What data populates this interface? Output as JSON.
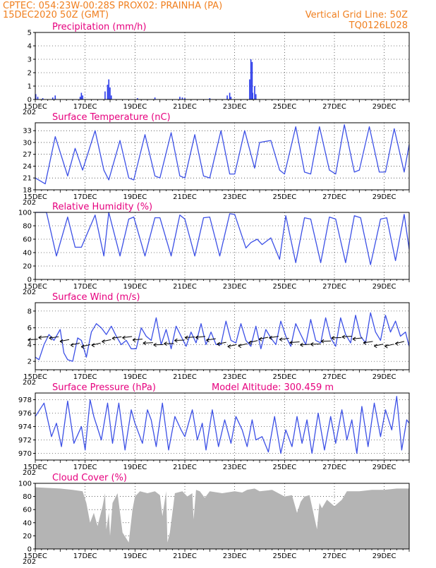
{
  "header": {
    "line1_left": "CPTEC:   054:23W-00:28S   PROX02: PRAINHA (PA)",
    "line2_left": "15DEC2020 50Z (GMT)",
    "line2_right": "Vertical Grid Line: 50Z",
    "line3_right": "TQ0126L028"
  },
  "x_ticks": [
    "15DEC",
    "17DEC",
    "19DEC",
    "21DEC",
    "23DEC",
    "25DEC",
    "27DEC",
    "29DEC"
  ],
  "x_sublabel": "202",
  "colors": {
    "line": "#3c50e6",
    "bar": "#2b3bea",
    "cloud": "#b4b4b4",
    "title": "#e6007e",
    "header": "#f07f1e"
  },
  "chart_data": [
    {
      "type": "bar",
      "title": "Precipitation (mm/h)",
      "ylim": [
        0,
        5
      ],
      "yticks": [
        0,
        1,
        2,
        3,
        4,
        5
      ],
      "x_start_day": 15,
      "x_end_day": 30,
      "values": [
        [
          15.02,
          0.4
        ],
        [
          15.1,
          0.2
        ],
        [
          15.3,
          0.1
        ],
        [
          15.7,
          0.15
        ],
        [
          15.8,
          0.3
        ],
        [
          16.8,
          0.2
        ],
        [
          16.85,
          0.5
        ],
        [
          16.9,
          0.3
        ],
        [
          17.8,
          0.6
        ],
        [
          17.9,
          1.1
        ],
        [
          17.95,
          1.5
        ],
        [
          18.0,
          0.9
        ],
        [
          18.05,
          0.3
        ],
        [
          19.1,
          0.1
        ],
        [
          19.8,
          0.15
        ],
        [
          20.8,
          0.2
        ],
        [
          20.9,
          0.15
        ],
        [
          21.0,
          0.1
        ],
        [
          22.0,
          0.1
        ],
        [
          22.7,
          0.3
        ],
        [
          22.8,
          0.5
        ],
        [
          22.85,
          0.2
        ],
        [
          23.6,
          1.5
        ],
        [
          23.65,
          3.0
        ],
        [
          23.7,
          2.8
        ],
        [
          23.72,
          0.5
        ],
        [
          23.8,
          1.0
        ],
        [
          23.85,
          0.4
        ]
      ]
    },
    {
      "type": "line",
      "title": "Surface Temperature (nC)",
      "ylim": [
        18,
        35
      ],
      "yticks": [
        18,
        21,
        24,
        27,
        30,
        33
      ],
      "x": [
        15.0,
        15.4,
        15.8,
        16.3,
        16.6,
        16.9,
        17.4,
        17.75,
        17.95,
        18.4,
        18.75,
        18.95,
        19.4,
        19.8,
        20.0,
        20.45,
        20.8,
        21.0,
        21.4,
        21.75,
        22.0,
        22.45,
        22.8,
        23.0,
        23.4,
        23.8,
        24.0,
        24.45,
        24.8,
        25.0,
        25.45,
        25.8,
        26.05,
        26.4,
        26.8,
        27.05,
        27.4,
        27.8,
        28.0,
        28.4,
        28.8,
        29.05,
        29.4,
        29.8,
        30.0
      ],
      "values": [
        21,
        19.5,
        31.5,
        21.5,
        28.5,
        23,
        33,
        23,
        20.5,
        30.5,
        21,
        20.5,
        32,
        21.5,
        21,
        32.5,
        21.5,
        21,
        32,
        21.5,
        21,
        33,
        22,
        22,
        33,
        23.5,
        30,
        30.5,
        23,
        22,
        34,
        22.5,
        22,
        34,
        23,
        22,
        34.5,
        22.5,
        23,
        34,
        22.5,
        22.5,
        33.5,
        22.5,
        29.5
      ]
    },
    {
      "type": "line",
      "title": "Relative Humidity (%)",
      "ylim": [
        0,
        100
      ],
      "yticks": [
        0,
        20,
        40,
        60,
        80,
        100
      ],
      "x": [
        15.0,
        15.45,
        15.85,
        16.3,
        16.6,
        16.85,
        17.4,
        17.75,
        17.95,
        18.4,
        18.75,
        18.95,
        19.4,
        19.8,
        20.0,
        20.45,
        20.8,
        21.0,
        21.4,
        21.75,
        22.0,
        22.4,
        22.8,
        23.0,
        23.45,
        23.65,
        23.9,
        24.1,
        24.45,
        24.8,
        25.05,
        25.45,
        25.8,
        26.05,
        26.45,
        26.8,
        27.05,
        27.45,
        27.8,
        28.05,
        28.45,
        28.85,
        29.1,
        29.45,
        29.8,
        30.0
      ],
      "values": [
        100,
        100,
        35,
        93,
        48,
        48,
        96,
        35,
        100,
        35,
        90,
        93,
        35,
        92,
        92,
        35,
        96,
        90,
        35,
        92,
        93,
        35,
        98,
        97,
        47,
        55,
        60,
        52,
        62,
        30,
        95,
        25,
        92,
        90,
        25,
        93,
        90,
        25,
        95,
        92,
        22,
        90,
        92,
        28,
        97,
        45
      ]
    },
    {
      "type": "line",
      "title": "Surface Wind (m/s)",
      "ylim": [
        1,
        9
      ],
      "yticks": [
        2,
        4,
        6,
        8
      ],
      "x": [
        15.0,
        15.15,
        15.35,
        15.55,
        15.75,
        16.0,
        16.15,
        16.3,
        16.5,
        16.7,
        16.85,
        17.05,
        17.25,
        17.45,
        17.65,
        17.85,
        18.05,
        18.25,
        18.45,
        18.65,
        18.85,
        19.05,
        19.25,
        19.45,
        19.65,
        19.85,
        20.05,
        20.25,
        20.45,
        20.65,
        20.85,
        21.05,
        21.25,
        21.45,
        21.65,
        21.85,
        22.05,
        22.25,
        22.45,
        22.65,
        22.85,
        23.05,
        23.25,
        23.45,
        23.65,
        23.85,
        24.05,
        24.25,
        24.45,
        24.65,
        24.85,
        25.05,
        25.25,
        25.45,
        25.65,
        25.85,
        26.05,
        26.25,
        26.45,
        26.65,
        26.85,
        27.05,
        27.25,
        27.45,
        27.65,
        27.85,
        28.05,
        28.25,
        28.45,
        28.65,
        28.85,
        29.05,
        29.25,
        29.45,
        29.65,
        29.85,
        30.0
      ],
      "values": [
        2.5,
        2.2,
        4,
        5.2,
        4.5,
        5.8,
        3,
        2.2,
        2,
        4.8,
        4.5,
        2.5,
        5.5,
        6.5,
        6,
        5.2,
        6.2,
        5,
        4,
        4.5,
        3.5,
        3.5,
        6,
        5,
        4.5,
        7.2,
        4,
        5.8,
        3.5,
        6.2,
        5,
        3.8,
        5.5,
        4.2,
        6.5,
        4,
        5.5,
        4,
        4,
        6.8,
        4.5,
        4.2,
        6.5,
        4.5,
        3.8,
        6.2,
        3.5,
        5.8,
        4.8,
        4,
        6.8,
        5,
        3.8,
        6.5,
        5.2,
        4,
        7,
        4.5,
        4.2,
        7.2,
        4.8,
        3.8,
        7.2,
        5.2,
        4.2,
        7.5,
        5,
        4.2,
        7.8,
        5.5,
        4.5,
        7.5,
        5.5,
        6.8,
        5,
        5.5,
        3.8
      ]
    },
    {
      "type": "line",
      "title": "Surface Pressure (hPa)",
      "annotation": "Model Altitude: 300.459  m",
      "ylim": [
        969,
        979
      ],
      "yticks": [
        970,
        972,
        974,
        976,
        978
      ],
      "x": [
        15.0,
        15.35,
        15.65,
        15.85,
        16.05,
        16.3,
        16.55,
        16.85,
        17.0,
        17.2,
        17.35,
        17.65,
        17.9,
        18.1,
        18.35,
        18.6,
        18.85,
        19.0,
        19.3,
        19.5,
        19.65,
        19.85,
        20.1,
        20.35,
        20.6,
        20.85,
        21.0,
        21.3,
        21.5,
        21.7,
        21.85,
        22.1,
        22.35,
        22.6,
        22.85,
        23.05,
        23.3,
        23.5,
        23.7,
        23.85,
        24.1,
        24.35,
        24.6,
        24.85,
        25.05,
        25.3,
        25.5,
        25.7,
        25.9,
        26.1,
        26.35,
        26.6,
        26.85,
        27.05,
        27.3,
        27.5,
        27.7,
        27.9,
        28.1,
        28.35,
        28.6,
        28.85,
        29.05,
        29.3,
        29.5,
        29.7,
        29.9,
        30.0
      ],
      "values": [
        975.5,
        977.5,
        972.5,
        974.5,
        971,
        977.8,
        971.5,
        974,
        970.5,
        978,
        975.5,
        972,
        977.5,
        971.5,
        977.5,
        970.5,
        976.5,
        974.5,
        971.5,
        976.5,
        975,
        971,
        977.5,
        970.5,
        975.5,
        973.5,
        972.5,
        976.5,
        972,
        974.5,
        970.5,
        976.5,
        971,
        975,
        971.5,
        975.5,
        973.5,
        971,
        975,
        972,
        972.5,
        970.2,
        975.5,
        970,
        973.5,
        971,
        975.5,
        971.5,
        975,
        970,
        976,
        970.5,
        975.5,
        971.5,
        976.5,
        972,
        975,
        970,
        977,
        971,
        977.5,
        972.5,
        976.5,
        973.5,
        978.5,
        970.5,
        975,
        974.5
      ]
    },
    {
      "type": "area",
      "title": "Cloud Cover (%)",
      "ylim": [
        0,
        100
      ],
      "yticks": [
        0,
        20,
        40,
        60,
        80,
        100
      ],
      "x": [
        15.0,
        15.5,
        16.0,
        16.5,
        16.9,
        17.05,
        17.2,
        17.35,
        17.5,
        17.7,
        17.8,
        17.85,
        17.95,
        18.0,
        18.1,
        18.3,
        18.5,
        18.75,
        18.9,
        19.0,
        19.2,
        19.5,
        19.8,
        20.0,
        20.1,
        20.25,
        20.3,
        20.4,
        20.6,
        20.9,
        21.1,
        21.3,
        21.35,
        21.45,
        21.6,
        21.8,
        22.0,
        22.5,
        23.0,
        23.3,
        23.5,
        23.8,
        24.0,
        24.5,
        25.0,
        25.3,
        25.5,
        25.65,
        25.8,
        26.0,
        26.3,
        26.4,
        26.5,
        26.7,
        27.0,
        27.3,
        27.5,
        28.0,
        28.5,
        29.0,
        29.5,
        30.0
      ],
      "values": [
        94,
        93,
        92,
        90,
        88,
        70,
        40,
        55,
        35,
        65,
        85,
        30,
        55,
        20,
        70,
        85,
        25,
        10,
        60,
        80,
        88,
        85,
        88,
        82,
        50,
        88,
        10,
        25,
        85,
        88,
        80,
        85,
        45,
        90,
        88,
        78,
        88,
        85,
        88,
        86,
        90,
        92,
        88,
        90,
        80,
        82,
        55,
        72,
        80,
        82,
        30,
        70,
        62,
        75,
        65,
        75,
        88,
        88,
        90,
        90,
        92,
        92
      ]
    }
  ]
}
